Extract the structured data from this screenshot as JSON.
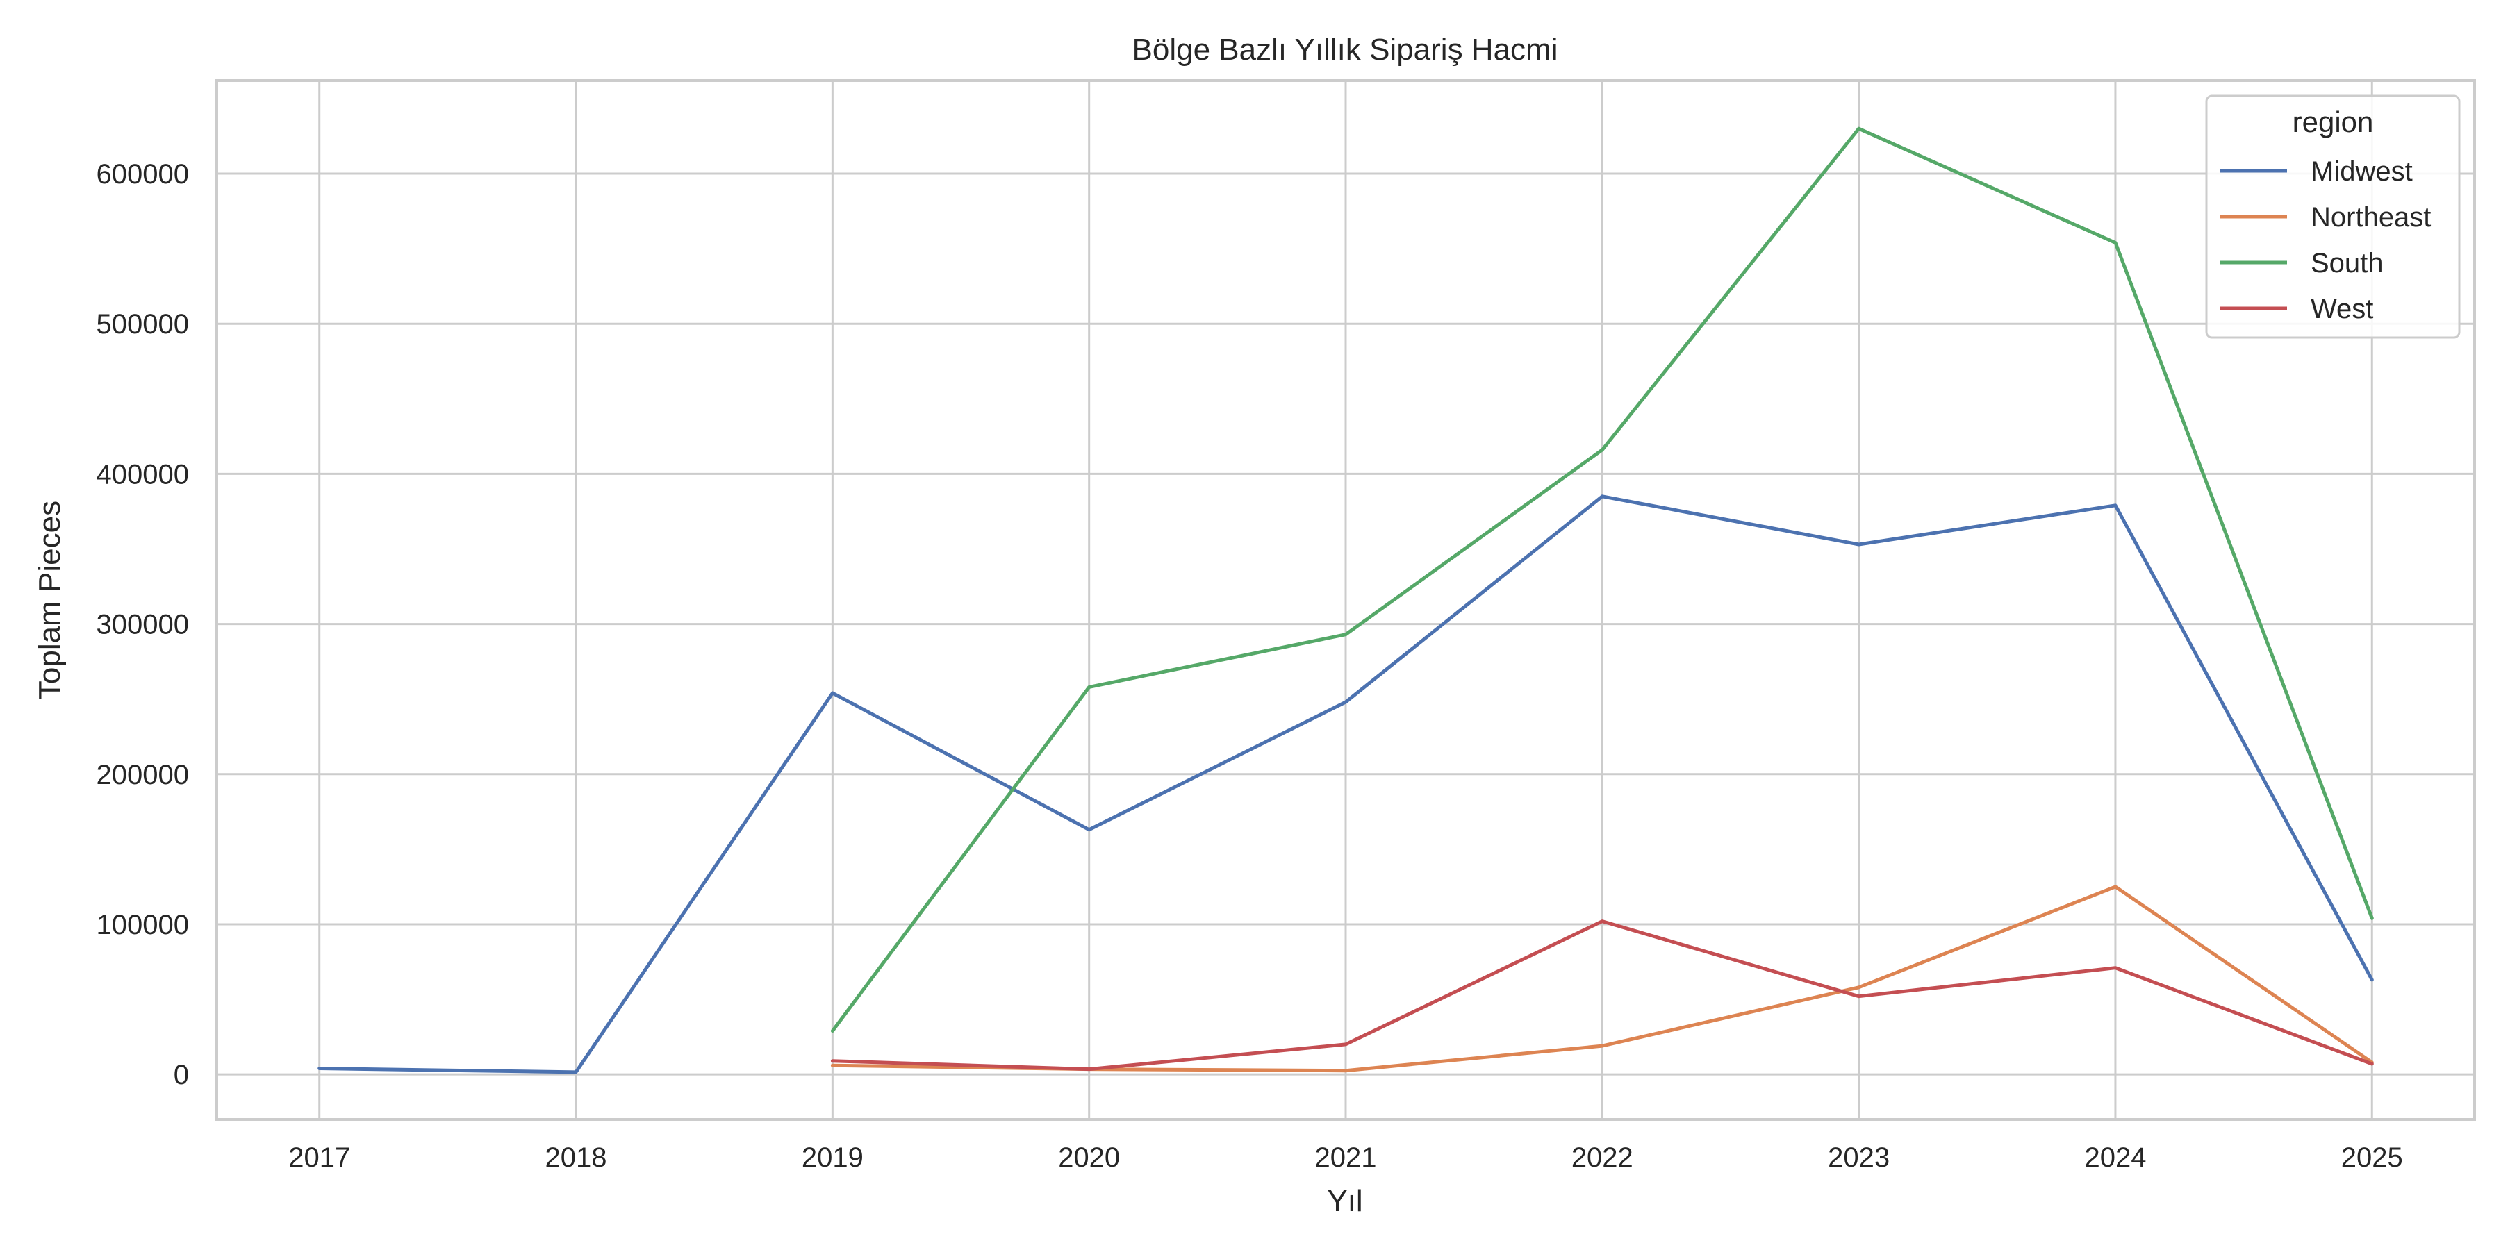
{
  "chart_data": {
    "type": "line",
    "title": "Bölge Bazlı Yıllık Sipariş Hacmi",
    "xlabel": "Yıl",
    "ylabel": "Toplam Pieces",
    "x": [
      2017,
      2018,
      2019,
      2020,
      2021,
      2022,
      2023,
      2024,
      2025
    ],
    "xlim": [
      2016.6,
      2025.4
    ],
    "ylim": [
      -30000,
      662000
    ],
    "yticks": [
      0,
      100000,
      200000,
      300000,
      400000,
      500000,
      600000
    ],
    "grid": true,
    "legend": {
      "title": "region",
      "placement": "top-right"
    },
    "series": [
      {
        "name": "Midwest",
        "color": "#4c72b0",
        "x": [
          2017,
          2018,
          2019,
          2020,
          2021,
          2022,
          2023,
          2024,
          2025
        ],
        "values": [
          4000,
          1500,
          254000,
          163000,
          248000,
          385000,
          353000,
          379000,
          63000
        ]
      },
      {
        "name": "Northeast",
        "color": "#dd8452",
        "x": [
          2019,
          2020,
          2021,
          2022,
          2023,
          2024,
          2025
        ],
        "values": [
          6000,
          3500,
          2500,
          19000,
          58000,
          125000,
          8000
        ]
      },
      {
        "name": "South",
        "color": "#55a868",
        "x": [
          2019,
          2020,
          2021,
          2022,
          2023,
          2024,
          2025
        ],
        "values": [
          29000,
          258000,
          293000,
          416000,
          630000,
          554000,
          104000
        ]
      },
      {
        "name": "West",
        "color": "#c44e52",
        "x": [
          2019,
          2020,
          2021,
          2022,
          2023,
          2024,
          2025
        ],
        "values": [
          9000,
          3500,
          20000,
          102000,
          52000,
          71000,
          7000
        ]
      }
    ]
  }
}
